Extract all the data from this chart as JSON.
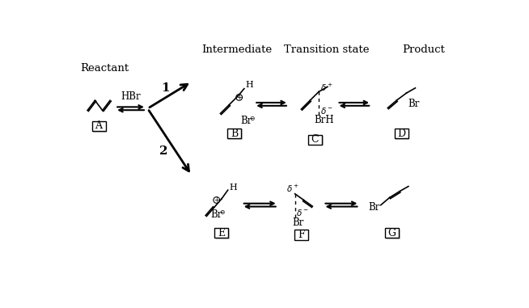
{
  "title_intermediate": "Intermediate",
  "title_transition": "Transition state",
  "title_product": "Product",
  "title_reactant": "Reactant",
  "bg_color": "#ffffff",
  "text_color": "#000000",
  "label_A": "A",
  "label_B": "B",
  "label_C": "C",
  "label_D": "D",
  "label_E": "E",
  "label_F": "F",
  "label_G": "G"
}
